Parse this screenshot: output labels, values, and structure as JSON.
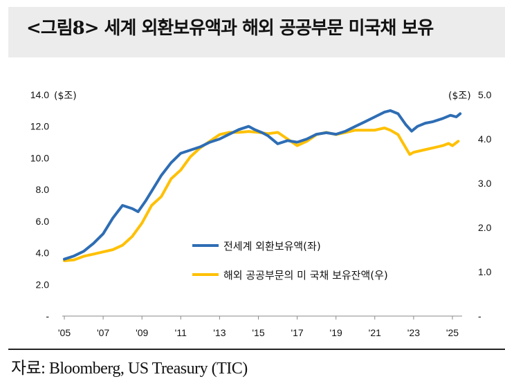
{
  "title": "<그림8> 세계 외환보유액과 해외 공공부문 미국채 보유",
  "source": "자료: Bloomberg, US Treasury (TIC)",
  "chart_data": {
    "type": "line",
    "left_unit": "($조)",
    "right_unit": "($조)",
    "left_ticks": [
      "-",
      "2.0",
      "4.0",
      "6.0",
      "8.0",
      "10.0",
      "12.0",
      "14.0"
    ],
    "right_ticks": [
      "-",
      "1.0",
      "2.0",
      "3.0",
      "4.0",
      "5.0"
    ],
    "x_ticks": [
      "'05",
      "'07",
      "'09",
      "'11",
      "'13",
      "'15",
      "'17",
      "'19",
      "'21",
      "'23",
      "'25"
    ],
    "ylim_left": [
      0,
      14
    ],
    "ylim_right": [
      0,
      5
    ],
    "xlim": [
      2005,
      2025.5
    ],
    "series": [
      {
        "name": "전세계 외환보유액(좌)",
        "axis": "left",
        "color": "#2e6db4",
        "x": [
          2005.0,
          2005.5,
          2006.0,
          2006.5,
          2007.0,
          2007.5,
          2008.0,
          2008.5,
          2008.8,
          2009.2,
          2009.5,
          2010.0,
          2010.5,
          2011.0,
          2011.5,
          2012.0,
          2012.5,
          2013.0,
          2013.5,
          2014.0,
          2014.5,
          2014.8,
          2015.2,
          2015.5,
          2016.0,
          2016.5,
          2017.0,
          2017.5,
          2018.0,
          2018.5,
          2019.0,
          2019.5,
          2020.0,
          2020.5,
          2021.0,
          2021.5,
          2021.8,
          2022.2,
          2022.6,
          2022.9,
          2023.2,
          2023.6,
          2024.0,
          2024.5,
          2024.9,
          2025.2,
          2025.4
        ],
        "values": [
          3.6,
          3.8,
          4.1,
          4.6,
          5.2,
          6.2,
          7.0,
          6.8,
          6.6,
          7.3,
          7.9,
          8.9,
          9.7,
          10.3,
          10.5,
          10.7,
          11.0,
          11.2,
          11.5,
          11.8,
          12.0,
          11.8,
          11.6,
          11.4,
          10.9,
          11.1,
          11.0,
          11.2,
          11.5,
          11.6,
          11.5,
          11.7,
          12.0,
          12.3,
          12.6,
          12.9,
          13.0,
          12.8,
          12.1,
          11.7,
          12.0,
          12.2,
          12.3,
          12.5,
          12.7,
          12.6,
          12.8
        ]
      },
      {
        "name": "해외 공공부문의 미 국채 보유잔액(우)",
        "axis": "right",
        "color": "#ffc000",
        "x": [
          2005.0,
          2005.5,
          2006.0,
          2006.5,
          2007.0,
          2007.5,
          2008.0,
          2008.5,
          2009.0,
          2009.5,
          2010.0,
          2010.5,
          2011.0,
          2011.5,
          2012.0,
          2012.5,
          2013.0,
          2013.5,
          2014.0,
          2014.5,
          2015.0,
          2015.5,
          2016.0,
          2016.5,
          2017.0,
          2017.5,
          2018.0,
          2018.5,
          2019.0,
          2019.5,
          2020.0,
          2020.5,
          2021.0,
          2021.5,
          2021.8,
          2022.2,
          2022.4,
          2022.8,
          2023.0,
          2023.5,
          2024.0,
          2024.5,
          2024.8,
          2025.0,
          2025.3
        ],
        "values": [
          1.25,
          1.27,
          1.35,
          1.4,
          1.45,
          1.5,
          1.6,
          1.8,
          2.1,
          2.5,
          2.7,
          3.1,
          3.3,
          3.6,
          3.8,
          3.95,
          4.1,
          4.15,
          4.15,
          4.17,
          4.15,
          4.12,
          4.15,
          4.0,
          3.85,
          3.95,
          4.1,
          4.15,
          4.1,
          4.15,
          4.2,
          4.2,
          4.2,
          4.25,
          4.2,
          4.1,
          3.95,
          3.65,
          3.7,
          3.75,
          3.8,
          3.85,
          3.9,
          3.85,
          3.95
        ]
      }
    ]
  }
}
